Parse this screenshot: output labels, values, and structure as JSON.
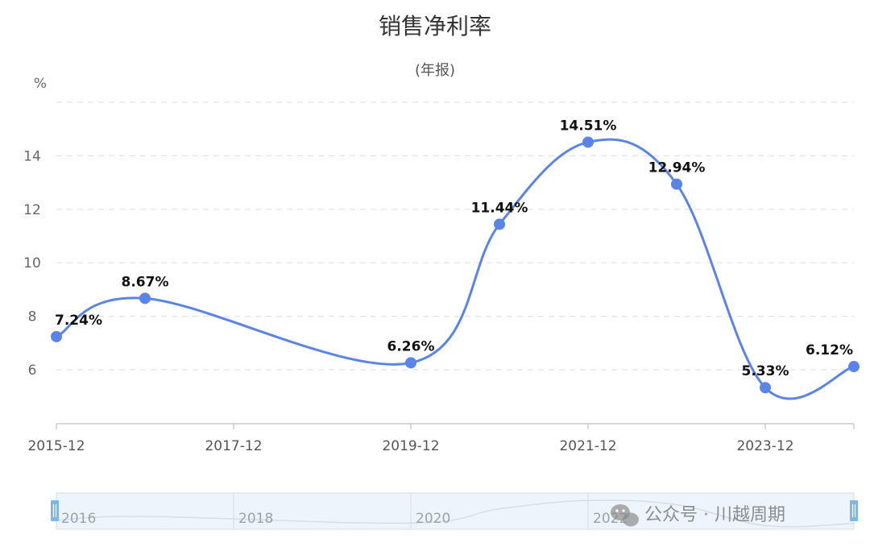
{
  "chart_data": {
    "type": "line",
    "title": "销售净利率",
    "subtitle": "(年报)",
    "y_unit": "%",
    "x": [
      "2015-12",
      "2016-12",
      "2017-12",
      "2018-12",
      "2019-12",
      "2020-12",
      "2021-12",
      "2022-12",
      "2023-12",
      "2024-12"
    ],
    "x_tick_labels": [
      "2015-12",
      "2017-12",
      "2019-12",
      "2021-12",
      "2023-12"
    ],
    "y_ticks": [
      6,
      8,
      10,
      12,
      14
    ],
    "ylim": [
      4,
      16
    ],
    "grid": true,
    "smooth": true,
    "color": "#5b84e8",
    "points": [
      {
        "x": "2015-12",
        "y": 7.24,
        "label": "7.24%"
      },
      {
        "x": "2016-12",
        "y": 8.67,
        "label": "8.67%"
      },
      {
        "x": "2019-12",
        "y": 6.26,
        "label": "6.26%"
      },
      {
        "x": "2020-12",
        "y": 11.44,
        "label": "11.44%"
      },
      {
        "x": "2021-12",
        "y": 14.51,
        "label": "14.51%"
      },
      {
        "x": "2022-12",
        "y": 12.94,
        "label": "12.94%"
      },
      {
        "x": "2023-12",
        "y": 5.33,
        "label": "5.33%"
      },
      {
        "x": "2024-12",
        "y": 6.12,
        "label": "6.12%"
      }
    ]
  },
  "data_zoom": {
    "tick_labels": [
      "2016",
      "2018",
      "2020",
      "2022"
    ],
    "fill_color": "#eef4fb",
    "border_color": "#d5dde6",
    "handle_color": "#7fb6e6"
  },
  "watermark": {
    "text": "公众号 · 川越周期"
  }
}
